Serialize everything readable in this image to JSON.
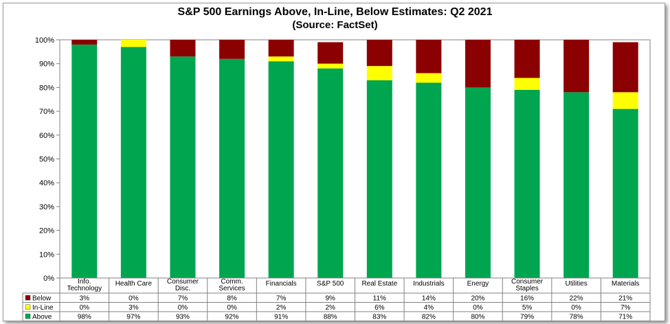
{
  "title": "S&P 500 Earnings Above, In-Line, Below Estimates: Q2 2021",
  "subtitle": "(Source: FactSet)",
  "chart_data": {
    "type": "bar",
    "stacked": true,
    "title": "S&P 500 Earnings Above, In-Line, Below Estimates: Q2 2021",
    "subtitle": "(Source: FactSet)",
    "categories": [
      [
        "Info.",
        "Technology"
      ],
      [
        "Health Care"
      ],
      [
        "Consumer",
        "Disc."
      ],
      [
        "Comm.",
        "Services"
      ],
      [
        "Financials"
      ],
      [
        "S&P 500"
      ],
      [
        "Real Estate"
      ],
      [
        "Industrials"
      ],
      [
        "Energy"
      ],
      [
        "Consumer",
        "Staples"
      ],
      [
        "Utilities"
      ],
      [
        "Materials"
      ]
    ],
    "series": [
      {
        "name": "Below",
        "color": "#8b0000",
        "values": [
          3,
          0,
          7,
          8,
          7,
          9,
          11,
          14,
          20,
          16,
          22,
          21
        ]
      },
      {
        "name": "In-Line",
        "color": "#ffff00",
        "values": [
          0,
          3,
          0,
          0,
          2,
          2,
          6,
          4,
          0,
          5,
          0,
          7
        ]
      },
      {
        "name": "Above",
        "color": "#00a550",
        "values": [
          98,
          97,
          93,
          92,
          91,
          88,
          83,
          82,
          80,
          79,
          78,
          71
        ]
      }
    ],
    "stack_order_bottom_to_top": [
      "Above",
      "In-Line",
      "Below"
    ],
    "table_row_order": [
      "Below",
      "In-Line",
      "Above"
    ],
    "ylim": [
      0,
      100
    ],
    "yticks": [
      "0%",
      "10%",
      "20%",
      "30%",
      "40%",
      "50%",
      "60%",
      "70%",
      "80%",
      "90%",
      "100%"
    ],
    "grid": false,
    "legend": "data-table"
  }
}
